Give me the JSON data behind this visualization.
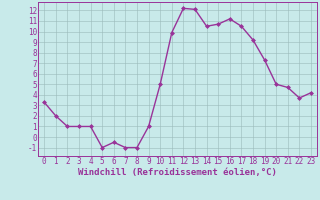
{
  "x": [
    0,
    1,
    2,
    3,
    4,
    5,
    6,
    7,
    8,
    9,
    10,
    11,
    12,
    13,
    14,
    15,
    16,
    17,
    18,
    19,
    20,
    21,
    22,
    23
  ],
  "y": [
    3.3,
    2.0,
    1.0,
    1.0,
    1.0,
    -1.0,
    -0.5,
    -1.0,
    -1.0,
    1.0,
    5.0,
    9.9,
    12.2,
    12.1,
    10.5,
    10.7,
    11.2,
    10.5,
    9.2,
    7.3,
    5.0,
    4.7,
    3.7,
    4.2
  ],
  "line_color": "#993399",
  "marker": "D",
  "marker_size": 2.0,
  "linewidth": 1.0,
  "xlabel": "Windchill (Refroidissement éolien,°C)",
  "xlim": [
    -0.5,
    23.5
  ],
  "ylim": [
    -1.8,
    12.8
  ],
  "yticks": [
    -1,
    0,
    1,
    2,
    3,
    4,
    5,
    6,
    7,
    8,
    9,
    10,
    11,
    12
  ],
  "xticks": [
    0,
    1,
    2,
    3,
    4,
    5,
    6,
    7,
    8,
    9,
    10,
    11,
    12,
    13,
    14,
    15,
    16,
    17,
    18,
    19,
    20,
    21,
    22,
    23
  ],
  "bg_color": "#c8eaea",
  "grid_color": "#9bbaba",
  "axis_color": "#993399",
  "xlabel_fontsize": 6.5,
  "tick_fontsize": 5.5
}
